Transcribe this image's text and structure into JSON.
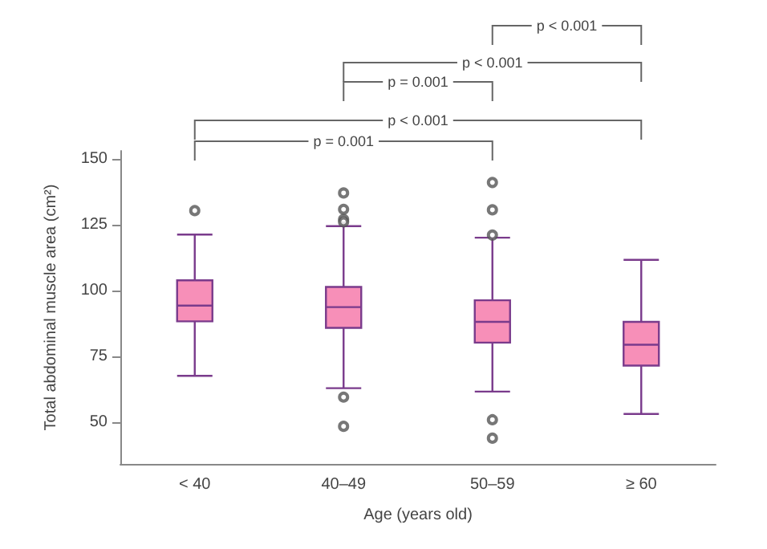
{
  "chart_data": {
    "type": "box",
    "xlabel": "Age (years old)",
    "ylabel": "Total abdominal muscle area (cm²)",
    "categories": [
      "< 40",
      "40–49",
      "50–59",
      "≥ 60"
    ],
    "color": "#f78fb8",
    "boxes": [
      {
        "low": 67.5,
        "q1": 88.2,
        "median": 94.2,
        "q3": 103.8,
        "high": 121.2,
        "outliers": [
          130.3
        ]
      },
      {
        "low": 62.8,
        "q1": 85.7,
        "median": 93.6,
        "q3": 101.3,
        "high": 124.4,
        "outliers": [
          137,
          130.8,
          127,
          126,
          59.4,
          48.3
        ]
      },
      {
        "low": 61.5,
        "q1": 80.1,
        "median": 88,
        "q3": 96.2,
        "high": 120,
        "outliers": [
          141,
          130.6,
          121,
          50.8,
          43.8
        ]
      },
      {
        "low": 53,
        "q1": 71.4,
        "median": 79.3,
        "q3": 88,
        "high": 111.6
      }
    ],
    "ylim": [
      34,
      153
    ],
    "yticks": [
      50,
      75,
      100,
      125,
      150
    ],
    "grid": false,
    "annotations": [
      "p = 0.001",
      "p < 0.001",
      "p = 0.001",
      "p < 0.001",
      "p < 0.001"
    ]
  }
}
